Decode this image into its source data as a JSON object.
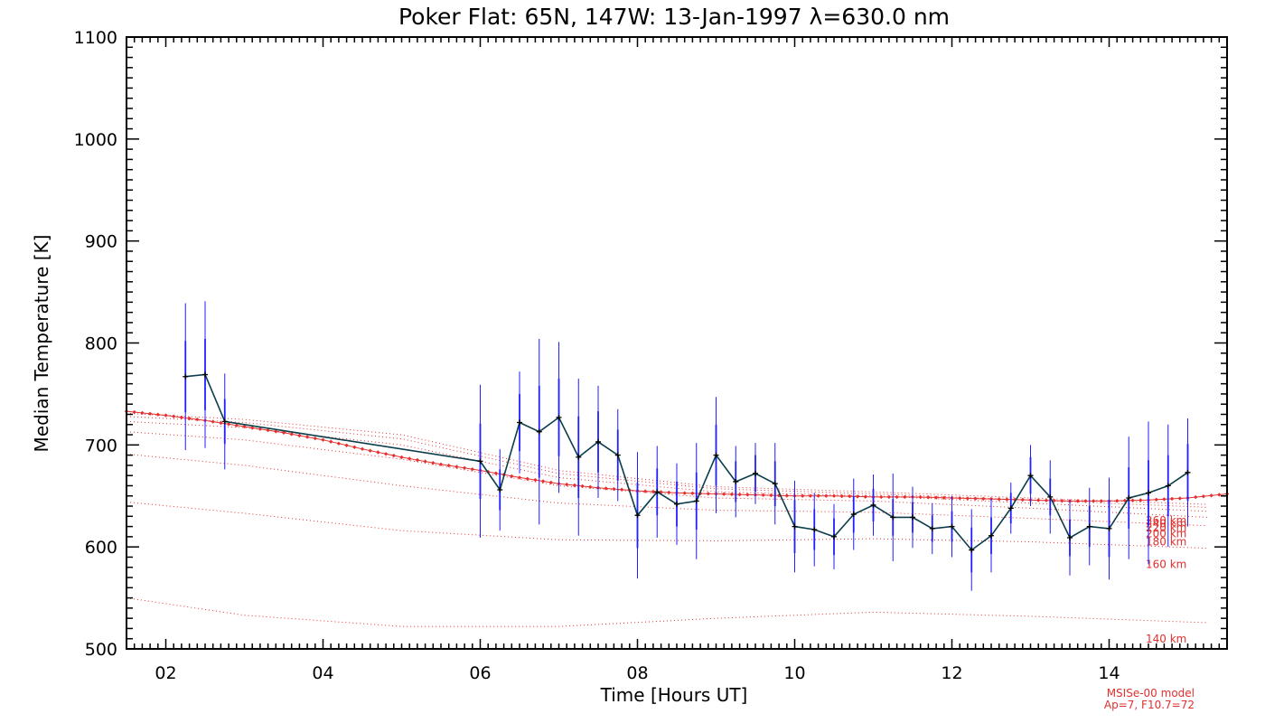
{
  "chart_data": {
    "type": "line",
    "title": "Poker Flat: 65N, 147W: 13-Jan-1997 λ=630.0 nm",
    "xlabel": "Time [Hours UT]",
    "ylabel": "Median Temperature [K]",
    "xlim": [
      1.5,
      15.5
    ],
    "ylim": [
      500,
      1100
    ],
    "x_ticks": [
      2,
      4,
      6,
      8,
      10,
      12,
      14
    ],
    "x_tick_labels": [
      "02",
      "04",
      "06",
      "08",
      "10",
      "12",
      "14"
    ],
    "y_ticks": [
      500,
      600,
      700,
      800,
      900,
      1000,
      1100
    ],
    "y_tick_labels": [
      "500",
      "600",
      "700",
      "800",
      "900",
      "1000",
      "1100"
    ],
    "grid": false,
    "colors": {
      "measured_line": "#0b3d4a",
      "error_bar": "#1f1fff",
      "model": "#e53030",
      "axis": "#000000"
    },
    "measured": {
      "x": [
        2.25,
        2.5,
        2.75,
        6.0,
        6.25,
        6.5,
        6.75,
        7.0,
        7.25,
        7.5,
        7.75,
        8.0,
        8.25,
        8.5,
        8.75,
        9.0,
        9.25,
        9.5,
        9.75,
        10.0,
        10.25,
        10.5,
        10.75,
        11.0,
        11.25,
        11.5,
        11.75,
        12.0,
        12.25,
        12.5,
        12.75,
        13.0,
        13.25,
        13.5,
        13.75,
        14.0,
        14.25,
        14.5,
        14.75,
        15.0
      ],
      "y": [
        767,
        769,
        723,
        684,
        656,
        722,
        713,
        727,
        688,
        703,
        690,
        631,
        654,
        642,
        645,
        690,
        664,
        672,
        662,
        620,
        617,
        610,
        632,
        641,
        629,
        629,
        618,
        620,
        597,
        611,
        638,
        670,
        649,
        609,
        620,
        618,
        648,
        653,
        660,
        673
      ],
      "err_inner": [
        35,
        35,
        22,
        37,
        20,
        28,
        45,
        38,
        40,
        30,
        25,
        32,
        23,
        22,
        28,
        30,
        20,
        18,
        22,
        26,
        20,
        18,
        18,
        16,
        18,
        15,
        13,
        15,
        22,
        18,
        15,
        18,
        18,
        18,
        20,
        28,
        30,
        32,
        30,
        28
      ],
      "err_outer": [
        72,
        72,
        47,
        75,
        40,
        50,
        91,
        74,
        77,
        55,
        45,
        62,
        45,
        40,
        57,
        57,
        35,
        30,
        40,
        45,
        36,
        32,
        35,
        30,
        43,
        30,
        25,
        30,
        40,
        36,
        25,
        30,
        36,
        37,
        38,
        50,
        60,
        70,
        60,
        53
      ]
    },
    "model": {
      "name": "MSISe-00 model",
      "parameters": "Ap=7, F10.7=72",
      "weighted_x": [
        1.5,
        2.0,
        2.5,
        3.0,
        3.5,
        4.0,
        4.5,
        5.0,
        5.5,
        6.0,
        6.5,
        7.0,
        7.5,
        8.0,
        8.5,
        9.0,
        9.5,
        10.0,
        10.5,
        11.0,
        11.5,
        12.0,
        12.5,
        13.0,
        13.5,
        14.0,
        14.5,
        15.0,
        15.5
      ],
      "weighted_y": [
        733,
        729,
        724,
        718,
        712,
        705,
        696,
        688,
        681,
        675,
        668,
        662,
        658,
        655,
        653,
        652,
        651,
        650,
        650,
        649,
        649,
        648,
        647,
        646,
        645,
        645,
        646,
        648,
        652
      ],
      "altitudes": [
        {
          "label": "140 km",
          "x": [
            1.5,
            3.0,
            5.0,
            7.0,
            9.0,
            11.0,
            13.0,
            15.5
          ],
          "y": [
            550,
            533,
            522,
            522,
            530,
            536,
            532,
            525
          ]
        },
        {
          "label": "160 km",
          "x": [
            1.5,
            3.0,
            5.0,
            7.0,
            9.0,
            11.0,
            13.0,
            15.5
          ],
          "y": [
            644,
            633,
            616,
            607,
            606,
            608,
            605,
            598
          ]
        },
        {
          "label": "180 km",
          "x": [
            1.5,
            3.0,
            5.0,
            7.0,
            9.0,
            11.0,
            13.0,
            15.5
          ],
          "y": [
            691,
            680,
            660,
            643,
            636,
            634,
            628,
            620
          ]
        },
        {
          "label": "200 km",
          "x": [
            1.5,
            3.0,
            5.0,
            7.0,
            9.0,
            11.0,
            13.0,
            15.5
          ],
          "y": [
            713,
            705,
            686,
            660,
            648,
            645,
            638,
            628
          ]
        },
        {
          "label": "220 km",
          "x": [
            1.5,
            3.0,
            5.0,
            7.0,
            9.0,
            11.0,
            13.0,
            15.5
          ],
          "y": [
            723,
            717,
            700,
            668,
            654,
            650,
            643,
            634
          ]
        },
        {
          "label": "240 km",
          "x": [
            1.5,
            3.0,
            5.0,
            7.0,
            9.0,
            11.0,
            13.0,
            15.5
          ],
          "y": [
            728,
            722,
            706,
            672,
            657,
            652,
            646,
            638
          ]
        },
        {
          "label": "260 km",
          "x": [
            1.5,
            3.0,
            5.0,
            7.0,
            9.0,
            11.0,
            13.0,
            15.5
          ],
          "y": [
            731,
            725,
            710,
            675,
            659,
            654,
            648,
            641
          ]
        }
      ]
    }
  }
}
